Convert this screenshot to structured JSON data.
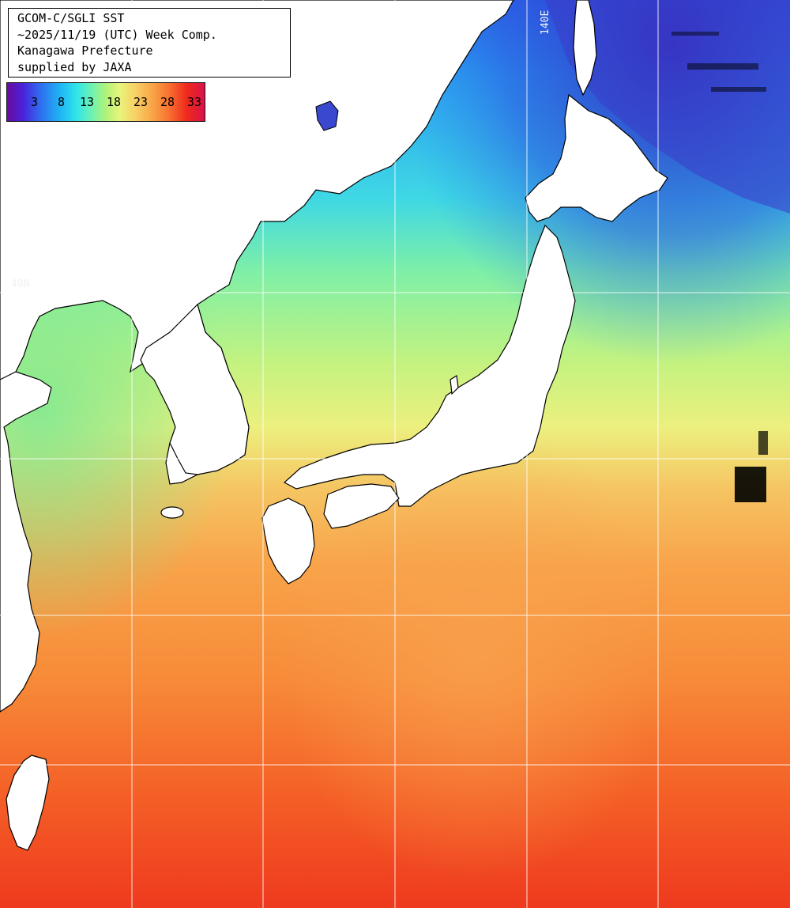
{
  "header": {
    "line1": "GCOM-C/SGLI SST",
    "line2": "~2025/11/19 (UTC) Week Comp.",
    "line3": "Kanagawa Prefecture",
    "line4": "supplied by JAXA"
  },
  "legend": {
    "labels": [
      "3",
      "8",
      "13",
      "18",
      "23",
      "28",
      "33"
    ],
    "colors": [
      "#6a0aa0",
      "#2f6ef0",
      "#2fe4ea",
      "#b0f27a",
      "#f8d066",
      "#f87030",
      "#d8124a"
    ]
  },
  "graticule": {
    "lon_label": "140E",
    "lat_label": "40N"
  },
  "colors": {
    "land": "#ffffff",
    "coast": "#000000",
    "grid": "#ffffff",
    "cloud_mask": "#000000"
  }
}
